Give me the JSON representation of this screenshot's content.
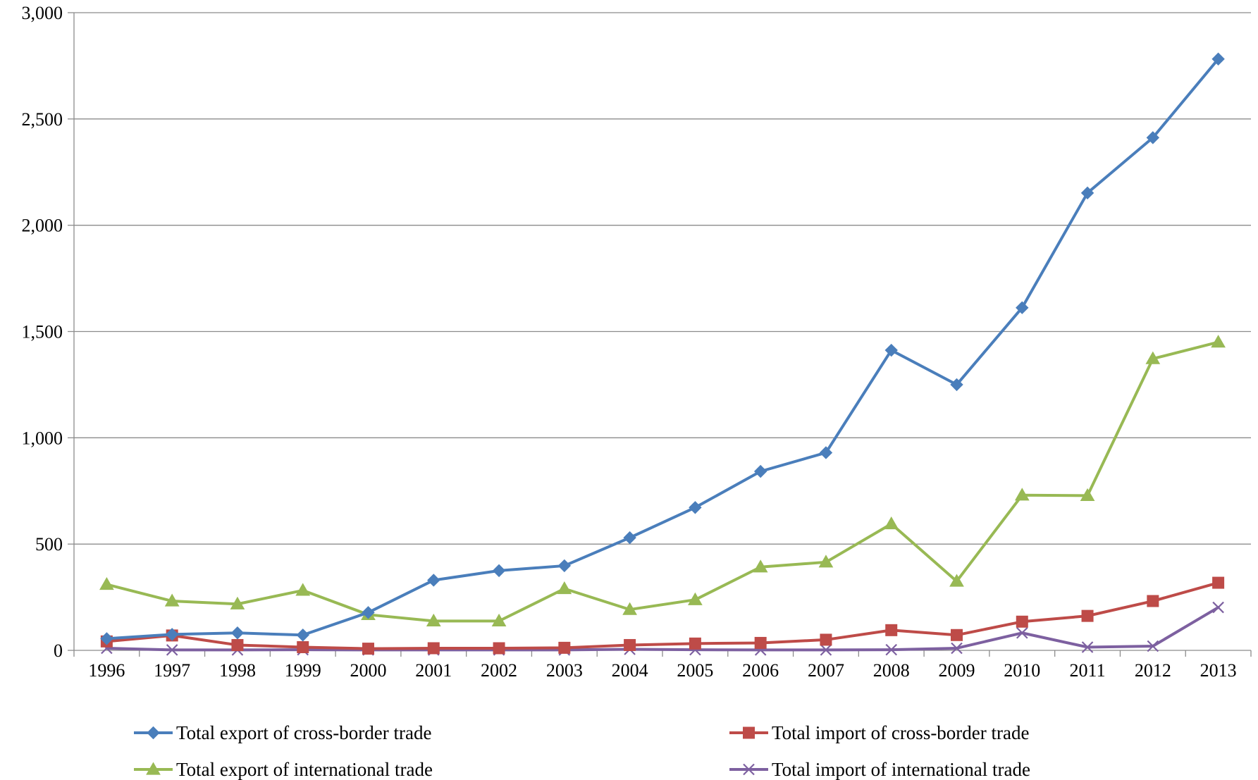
{
  "chart_data": {
    "type": "line",
    "title": "",
    "xlabel": "",
    "ylabel": "",
    "categories": [
      "1996",
      "1997",
      "1998",
      "1999",
      "2000",
      "2001",
      "2002",
      "2003",
      "2004",
      "2005",
      "2006",
      "2007",
      "2008",
      "2009",
      "2010",
      "2011",
      "2012",
      "2013"
    ],
    "ylim": [
      0,
      3000
    ],
    "yticks": [
      0,
      500,
      1000,
      1500,
      2000,
      2500,
      3000
    ],
    "ytick_labels": [
      "0",
      "500",
      "1,000",
      "1,500",
      "2,000",
      "2,500",
      "3,000"
    ],
    "grid": "horizontal",
    "legend_position": "bottom",
    "series": [
      {
        "name": "Total export of cross-border trade",
        "color": "#4a7ebb",
        "marker": "diamond",
        "values": [
          55,
          75,
          82,
          72,
          178,
          330,
          375,
          398,
          530,
          672,
          842,
          930,
          1412,
          1250,
          1612,
          2152,
          2412,
          2782
        ]
      },
      {
        "name": "Total import of cross-border trade",
        "color": "#be4b48",
        "marker": "square",
        "values": [
          42,
          70,
          25,
          15,
          8,
          10,
          10,
          12,
          25,
          32,
          35,
          50,
          95,
          72,
          135,
          162,
          232,
          318
        ]
      },
      {
        "name": "Total export of international trade",
        "color": "#98b954",
        "marker": "triangle",
        "values": [
          310,
          232,
          218,
          282,
          168,
          138,
          138,
          290,
          192,
          238,
          392,
          415,
          595,
          325,
          730,
          728,
          1372,
          1450
        ]
      },
      {
        "name": "Total import of international trade",
        "color": "#7d60a0",
        "marker": "x",
        "values": [
          10,
          2,
          2,
          3,
          2,
          2,
          2,
          2,
          5,
          3,
          2,
          2,
          3,
          10,
          82,
          15,
          20,
          202
        ]
      }
    ]
  }
}
